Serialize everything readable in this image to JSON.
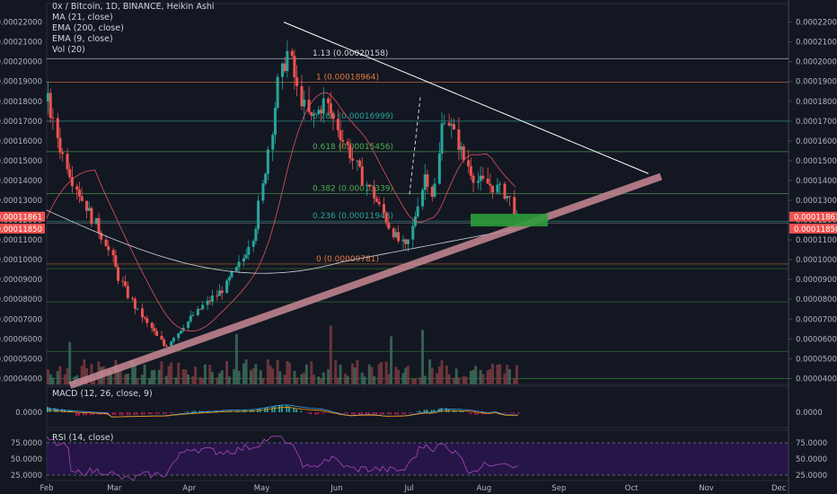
{
  "legend": {
    "symbol": "0x / Bitcoin, 1D, BINANCE, Heikin Ashi",
    "ma": "MA (21, close)",
    "ema200": "EMA (200, close)",
    "ema9": "EMA (9, close)",
    "vol": "Vol (20)"
  },
  "macd": {
    "label": "MACD (12, 26, close, 9)",
    "zero_label": "0.0000"
  },
  "rsi": {
    "label": "RSI (14, close)",
    "ticks": [
      "75.0000",
      "50.0000",
      "25.0000"
    ]
  },
  "price_badges": {
    "top": "0.00011861",
    "bottom": "0.00011850"
  },
  "colors": {
    "up": "#26a69a",
    "down": "#ef5350",
    "background": "#131722",
    "trend": "#c98a95"
  },
  "chart_data": {
    "type": "candlestick",
    "price_ticks": [
      "0.00022000",
      "0.00021000",
      "0.00020000",
      "0.00019000",
      "0.00018000",
      "0.00017000",
      "0.00016000",
      "0.00015000",
      "0.00014000",
      "0.00013000",
      "0.00012000",
      "0.00011000",
      "0.00010000",
      "0.00009000",
      "0.00008000",
      "0.00007000",
      "0.00006000",
      "0.00005000",
      "0.00004000"
    ],
    "y_range": [
      3.7e-05,
      0.000223
    ],
    "x_ticks": [
      "Feb",
      "Mar",
      "Apr",
      "May",
      "Jun",
      "Jul",
      "Aug",
      "Sep",
      "Oct",
      "Nov",
      "Dec"
    ],
    "fib_levels": [
      {
        "ratio": "1.13",
        "value": "(0.00020158)",
        "color": "#d1d4dc"
      },
      {
        "ratio": "1",
        "value": "(0.00018964)",
        "color": "#e5783b"
      },
      {
        "ratio": "0.786",
        "value": "(0.00016999)",
        "color": "#26a69a"
      },
      {
        "ratio": "0.618",
        "value": "(0.00015456)",
        "color": "#4caf50"
      },
      {
        "ratio": "0.382",
        "value": "(0.00013339)",
        "color": "#4caf50"
      },
      {
        "ratio": "0.236",
        "value": "(0.00011948)",
        "color": "#26a69a"
      },
      {
        "ratio": "0",
        "value": "(0.00009781)",
        "color": "#e5783b"
      }
    ],
    "price_path": [
      [
        "2018-02-01",
        0.00018
      ],
      [
        "2018-02-06",
        0.000158
      ],
      [
        "2018-02-12",
        0.00014
      ],
      [
        "2018-02-18",
        0.000125
      ],
      [
        "2018-02-25",
        0.00011
      ],
      [
        "2018-03-03",
        9e-05
      ],
      [
        "2018-03-10",
        7.5e-05
      ],
      [
        "2018-03-17",
        6.4e-05
      ],
      [
        "2018-03-22",
        5.6e-05
      ],
      [
        "2018-03-26",
        6.2e-05
      ],
      [
        "2018-04-01",
        7e-05
      ],
      [
        "2018-04-08",
        7.8e-05
      ],
      [
        "2018-04-15",
        8.5e-05
      ],
      [
        "2018-04-22",
        9.8e-05
      ],
      [
        "2018-04-28",
        0.000115
      ],
      [
        "2018-05-03",
        0.00015
      ],
      [
        "2018-05-08",
        0.00019
      ],
      [
        "2018-05-12",
        0.000205
      ],
      [
        "2018-05-16",
        0.000185
      ],
      [
        "2018-05-21",
        0.00017
      ],
      [
        "2018-05-27",
        0.00018
      ],
      [
        "2018-06-02",
        0.000165
      ],
      [
        "2018-06-10",
        0.000145
      ],
      [
        "2018-06-18",
        0.000128
      ],
      [
        "2018-06-25",
        0.000112
      ],
      [
        "2018-06-30",
        0.000105
      ],
      [
        "2018-07-04",
        0.000125
      ],
      [
        "2018-07-08",
        0.000145
      ],
      [
        "2018-07-11",
        0.00013
      ],
      [
        "2018-07-15",
        0.000175
      ],
      [
        "2018-07-19",
        0.000165
      ],
      [
        "2018-07-24",
        0.00015
      ],
      [
        "2018-07-29",
        0.00014
      ],
      [
        "2018-08-03",
        0.000138
      ],
      [
        "2018-08-08",
        0.000135
      ],
      [
        "2018-08-12",
        0.00013
      ],
      [
        "2018-08-15",
        0.000118
      ]
    ]
  }
}
